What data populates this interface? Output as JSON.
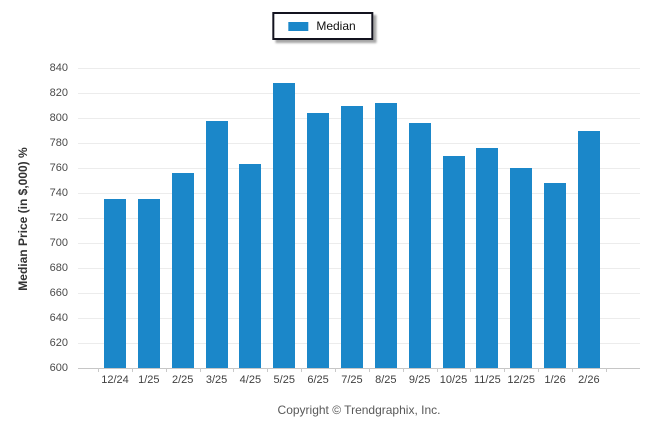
{
  "legend": {
    "label": "Median",
    "swatch_color": "#1b87c9"
  },
  "chart_data": {
    "type": "bar",
    "title": "",
    "categories": [
      "12/24",
      "1/25",
      "2/25",
      "3/25",
      "4/25",
      "5/25",
      "6/25",
      "7/25",
      "8/25",
      "9/25",
      "10/25",
      "11/25",
      "12/25",
      "1/26",
      "2/26"
    ],
    "series": [
      {
        "name": "Median",
        "values": [
          735,
          735,
          756,
          798,
          763,
          828,
          804,
          810,
          812,
          796,
          770,
          776,
          760,
          748,
          790
        ]
      }
    ],
    "xlabel": "",
    "ylabel": "Median Price (in $,000) %",
    "ylim": [
      600,
      840
    ],
    "yticks": [
      600,
      620,
      640,
      660,
      680,
      700,
      720,
      740,
      760,
      780,
      800,
      820,
      840
    ],
    "grid": true,
    "legend_position": "top-center",
    "bar_color": "#1b87c9",
    "gridline_color": "#ececec"
  },
  "footer": {
    "copyright": "Copyright © Trendgraphix, Inc."
  }
}
